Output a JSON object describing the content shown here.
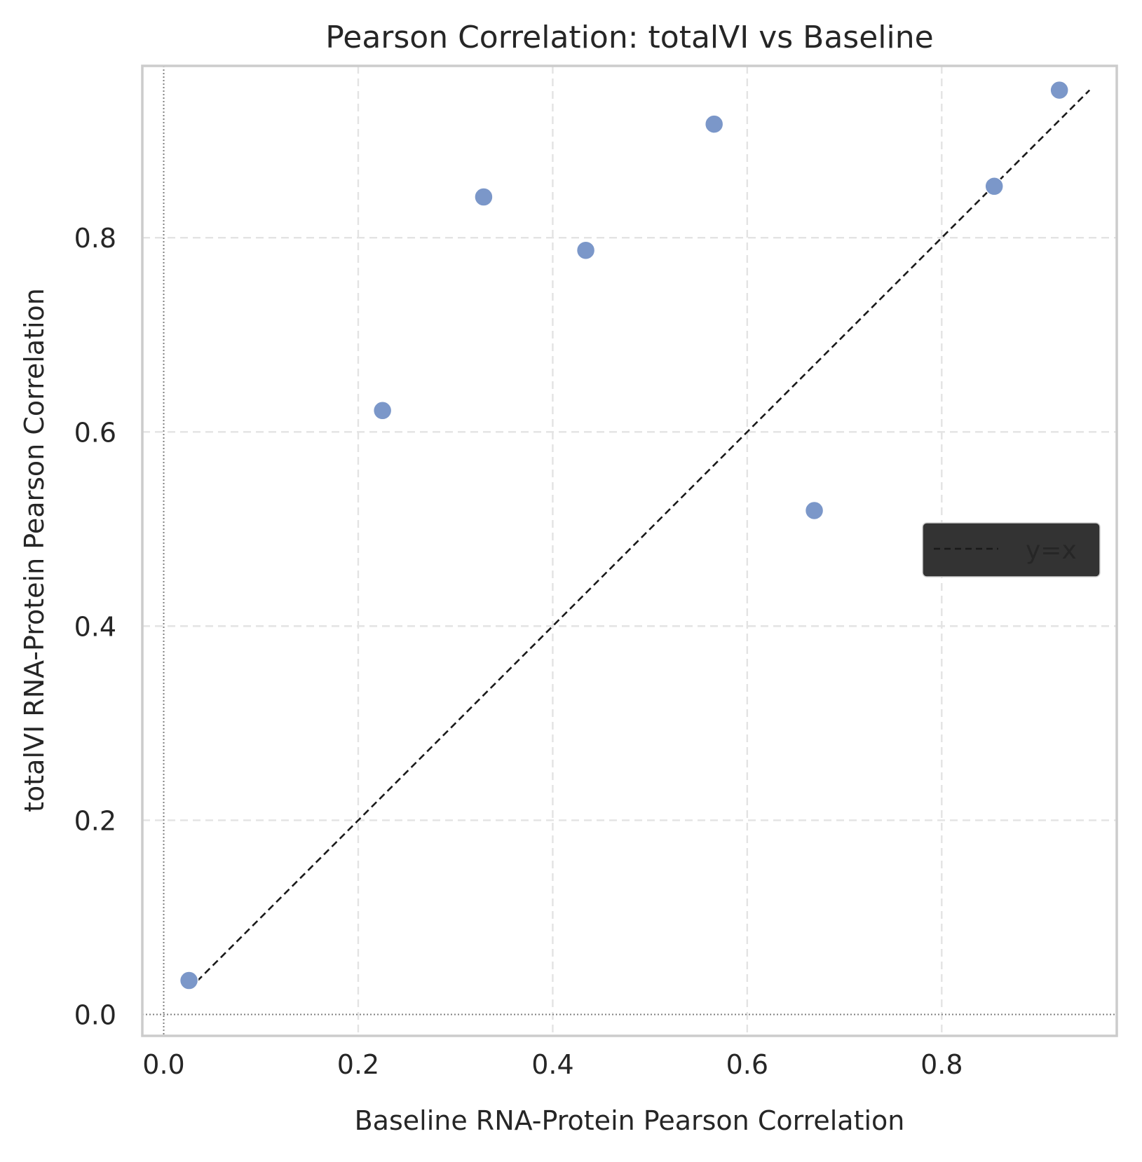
{
  "chart_data": {
    "type": "scatter",
    "title": "Pearson Correlation: totalVI vs Baseline",
    "xlabel": "Baseline RNA-Protein Pearson Correlation",
    "ylabel": "totalVI RNA-Protein Pearson Correlation",
    "xlim": [
      -0.022,
      0.98
    ],
    "ylim": [
      -0.022,
      0.977
    ],
    "xticks": [
      0.0,
      0.2,
      0.4,
      0.6,
      0.8
    ],
    "yticks": [
      0.0,
      0.2,
      0.4,
      0.6,
      0.8
    ],
    "xtick_labels": [
      "0.0",
      "0.2",
      "0.4",
      "0.6",
      "0.8"
    ],
    "ytick_labels": [
      "0.0",
      "0.2",
      "0.4",
      "0.6",
      "0.8"
    ],
    "grid": true,
    "points": [
      {
        "x": 0.026,
        "y": 0.035
      },
      {
        "x": 0.225,
        "y": 0.622
      },
      {
        "x": 0.329,
        "y": 0.842
      },
      {
        "x": 0.434,
        "y": 0.787
      },
      {
        "x": 0.566,
        "y": 0.917
      },
      {
        "x": 0.669,
        "y": 0.519
      },
      {
        "x": 0.854,
        "y": 0.853
      },
      {
        "x": 0.921,
        "y": 0.952
      }
    ],
    "reference_line": {
      "label": "y=x",
      "from": 0.026,
      "to": 0.952
    },
    "legend": {
      "placement": "center-right",
      "entries": [
        "y=x"
      ]
    },
    "colors": {
      "points": "#7b97c9",
      "reference_line": "#1a1a1a",
      "legend_bg": "#333333",
      "grid": "#e3e3e3",
      "frame": "#cccccc",
      "zero_line": "#808080"
    }
  }
}
